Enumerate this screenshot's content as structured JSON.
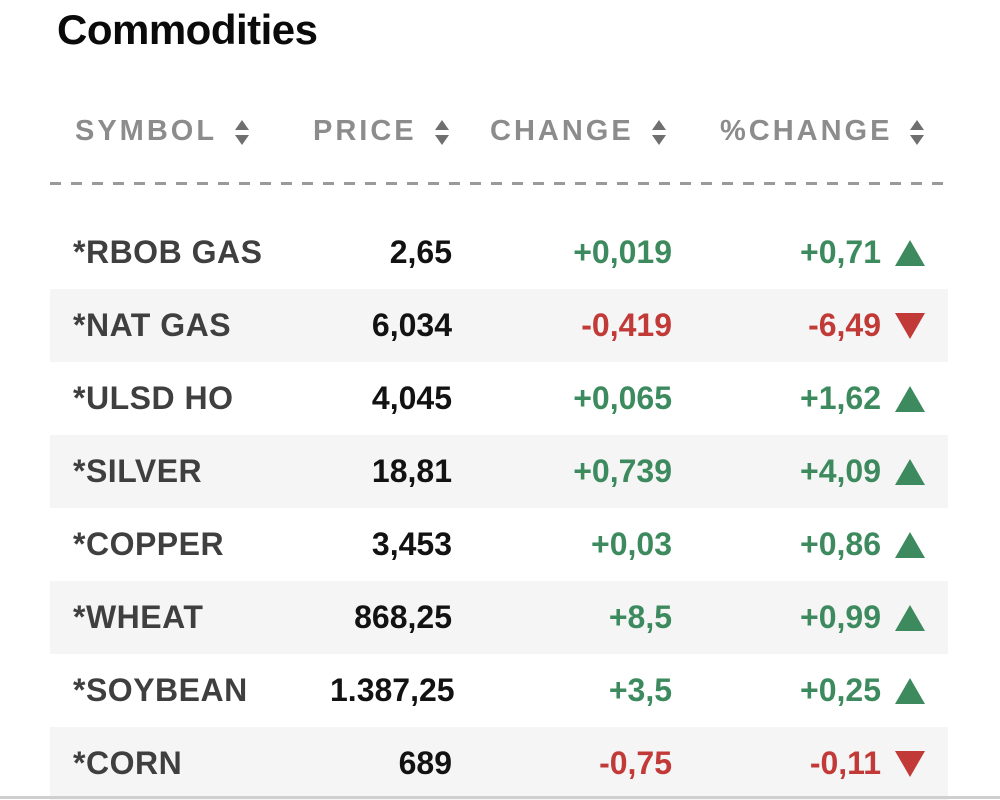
{
  "page": {
    "title": "Commodities"
  },
  "table": {
    "columns": [
      {
        "key": "symbol",
        "label": "SYMBOL"
      },
      {
        "key": "price",
        "label": "PRICE"
      },
      {
        "key": "change",
        "label": "CHANGE"
      },
      {
        "key": "pct_change",
        "label": "%CHANGE"
      }
    ],
    "rows": [
      {
        "symbol": "*RBOB GAS",
        "price": "2,65",
        "change": "+0,019",
        "pct_change": "+0,71",
        "direction": "up"
      },
      {
        "symbol": "*NAT GAS",
        "price": "6,034",
        "change": "-0,419",
        "pct_change": "-6,49",
        "direction": "down"
      },
      {
        "symbol": "*ULSD HO",
        "price": "4,045",
        "change": "+0,065",
        "pct_change": "+1,62",
        "direction": "up"
      },
      {
        "symbol": "*SILVER",
        "price": "18,81",
        "change": "+0,739",
        "pct_change": "+4,09",
        "direction": "up"
      },
      {
        "symbol": "*COPPER",
        "price": "3,453",
        "change": "+0,03",
        "pct_change": "+0,86",
        "direction": "up"
      },
      {
        "symbol": "*WHEAT",
        "price": "868,25",
        "change": "+8,5",
        "pct_change": "+0,99",
        "direction": "up"
      },
      {
        "symbol": "*SOYBEAN",
        "price": "1.387,25",
        "change": "+3,5",
        "pct_change": "+0,25",
        "direction": "up"
      },
      {
        "symbol": "*CORN",
        "price": "689",
        "change": "-0,75",
        "pct_change": "-0,11",
        "direction": "down"
      }
    ]
  },
  "icons": {
    "sort": "sort-chevrons-icon",
    "up": "triangle-up-icon",
    "down": "triangle-down-icon"
  },
  "colors": {
    "positive": "#3c8a5e",
    "negative": "#c13a37",
    "header_text": "#8c8c8c",
    "symbol_text": "#3f3f3f",
    "price_text": "#121212",
    "row_alt_bg": "#f5f5f5"
  }
}
